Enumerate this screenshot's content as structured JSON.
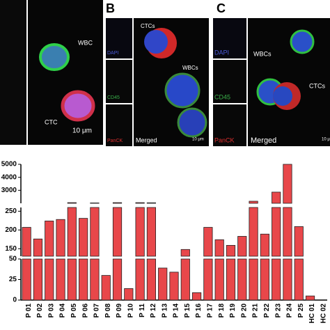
{
  "panels": [
    {
      "label": null,
      "texts": [
        "WBC",
        "CTC",
        "10 μm"
      ]
    },
    {
      "label": "B",
      "texts": [
        "DAPI",
        "CD45",
        "PanCK",
        "Merged",
        "CTCs",
        "WBCs",
        "10 μm"
      ]
    },
    {
      "label": "C",
      "texts": [
        "DAPI",
        "CD45",
        "PanCK",
        "Merged",
        "WBCs",
        "CTCs",
        "10 μm"
      ]
    }
  ],
  "chart_data": {
    "type": "bar",
    "color": "#e8474a",
    "categories": [
      "P 01",
      "P 02",
      "P 03",
      "P 04",
      "P 05",
      "P 06",
      "P 07",
      "P 08",
      "P 09",
      "P 10",
      "P 11",
      "P 12",
      "P 13",
      "P 14",
      "P 15",
      "P 16",
      "P 17",
      "P 18",
      "P 19",
      "P 20",
      "P 21",
      "P 22",
      "P 23",
      "P 24",
      "P 25",
      "HC 01",
      "HC 02"
    ],
    "values": [
      207,
      176,
      224,
      228,
      2050,
      231,
      2030,
      30,
      2050,
      14,
      2050,
      2040,
      39,
      34,
      148,
      9,
      207,
      174,
      159,
      183,
      2160,
      189,
      2860,
      5000,
      209,
      5,
      0
    ],
    "segments": [
      {
        "ylim": [
          0,
          50
        ],
        "yticks": [
          0,
          25,
          50
        ]
      },
      {
        "ylim": [
          130,
          260
        ],
        "yticks": [
          150,
          200,
          250
        ]
      },
      {
        "ylim": [
          2000,
          5000
        ],
        "yticks": [
          3000,
          4000,
          5000
        ]
      }
    ]
  }
}
